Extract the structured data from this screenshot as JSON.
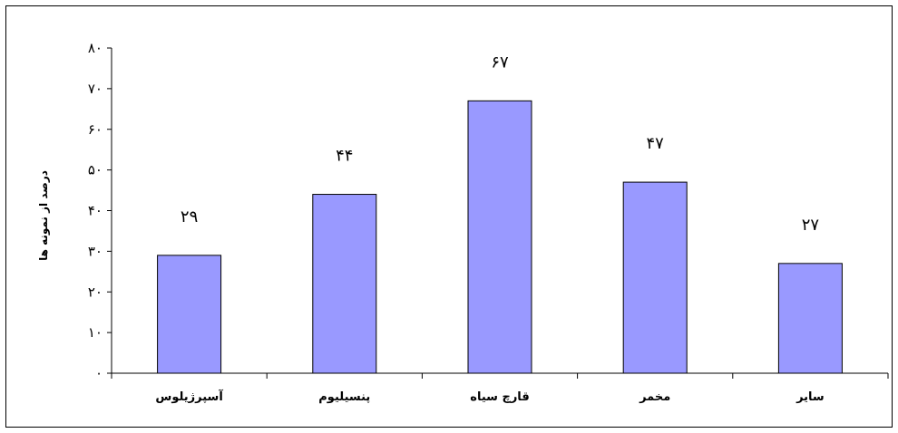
{
  "chart_data": {
    "type": "bar",
    "categories": [
      "آسپرژیلوس",
      "پنسیلیوم",
      "قارچ سیاه",
      "مخمر",
      "سایر"
    ],
    "values": [
      29,
      44,
      67,
      47,
      27
    ],
    "data_labels": [
      "۲۹",
      "۴۴",
      "۶۷",
      "۴۷",
      "۲۷"
    ],
    "title": "",
    "xlabel": "",
    "ylabel": "درصد از نمونه ها",
    "ylim": [
      0,
      80
    ],
    "yticks": [
      0,
      10,
      20,
      30,
      40,
      50,
      60,
      70,
      80
    ],
    "ytick_labels": [
      "۰",
      "۱۰",
      "۲۰",
      "۳۰",
      "۴۰",
      "۵۰",
      "۶۰",
      "۷۰",
      "۸۰"
    ],
    "grid": false,
    "legend": "none",
    "bar_color": "#9999FF",
    "bar_edge_color": "#000000"
  }
}
